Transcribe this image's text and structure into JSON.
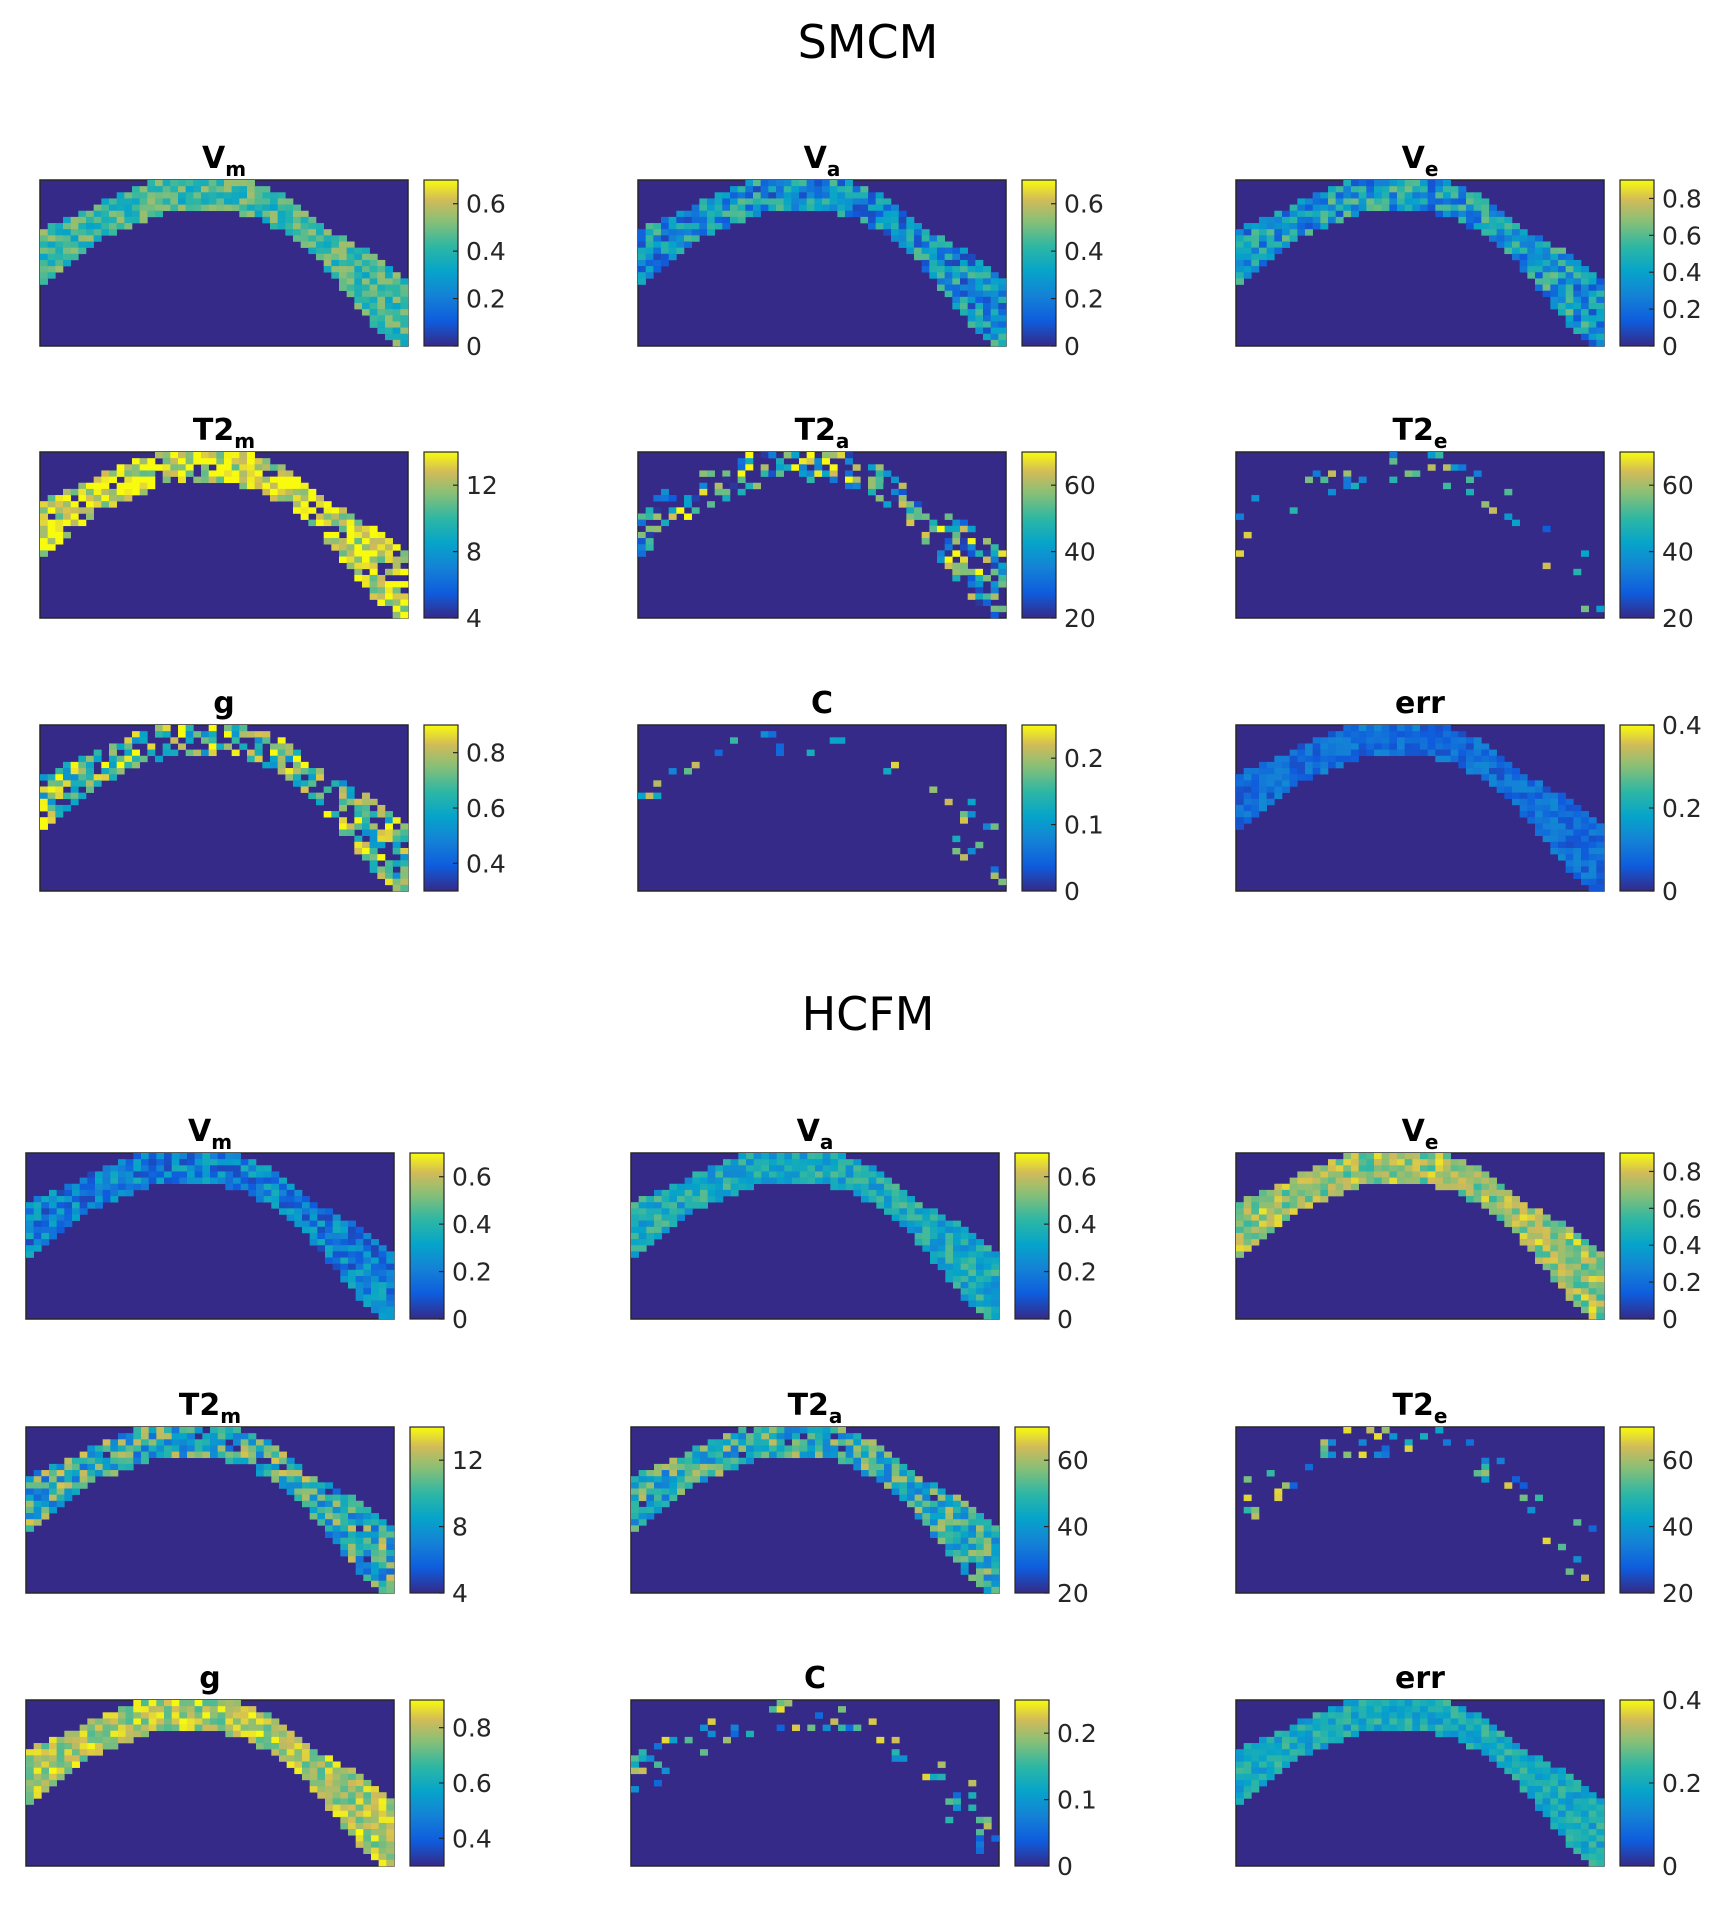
{
  "chart_data": [
    {
      "type": "heatmap",
      "title": "SMCM",
      "colormap": "parula",
      "background_color": "#352a87",
      "panels": [
        {
          "title": "V",
          "subscript": "m",
          "ticks": [
            0,
            0.2,
            0.4,
            0.6
          ],
          "tick_labels": [
            "0",
            "0.2",
            "0.4",
            "0.6"
          ],
          "clim": [
            0,
            0.7
          ]
        },
        {
          "title": "V",
          "subscript": "a",
          "ticks": [
            0,
            0.2,
            0.4,
            0.6
          ],
          "tick_labels": [
            "0",
            "0.2",
            "0.4",
            "0.6"
          ],
          "clim": [
            0,
            0.7
          ]
        },
        {
          "title": "V",
          "subscript": "e",
          "ticks": [
            0,
            0.2,
            0.4,
            0.6,
            0.8
          ],
          "tick_labels": [
            "0",
            "0.2",
            "0.4",
            "0.6",
            "0.8"
          ],
          "clim": [
            0,
            0.9
          ]
        },
        {
          "title": "T2",
          "subscript": "m",
          "ticks": [
            4,
            8,
            12
          ],
          "tick_labels": [
            "4",
            "8",
            "12"
          ],
          "clim": [
            4,
            14
          ]
        },
        {
          "title": "T2",
          "subscript": "a",
          "ticks": [
            20,
            40,
            60
          ],
          "tick_labels": [
            "20",
            "40",
            "60"
          ],
          "clim": [
            20,
            70
          ]
        },
        {
          "title": "T2",
          "subscript": "e",
          "ticks": [
            20,
            40,
            60
          ],
          "tick_labels": [
            "20",
            "40",
            "60"
          ],
          "clim": [
            20,
            70
          ]
        },
        {
          "title": "g",
          "subscript": "",
          "ticks": [
            0.4,
            0.6,
            0.8
          ],
          "tick_labels": [
            "0.4",
            "0.6",
            "0.8"
          ],
          "clim": [
            0.3,
            0.9
          ]
        },
        {
          "title": "C",
          "subscript": "",
          "ticks": [
            0,
            0.1,
            0.2
          ],
          "tick_labels": [
            "0",
            "0.1",
            "0.2"
          ],
          "clim": [
            0,
            0.25
          ]
        },
        {
          "title": "err",
          "subscript": "",
          "ticks": [
            0,
            0.2,
            0.4
          ],
          "tick_labels": [
            "0",
            "0.2",
            "0.4"
          ],
          "clim": [
            0,
            0.4
          ]
        }
      ]
    },
    {
      "type": "heatmap",
      "title": "HCFM",
      "colormap": "parula",
      "background_color": "#352a87",
      "panels": [
        {
          "title": "V",
          "subscript": "m",
          "ticks": [
            0,
            0.2,
            0.4,
            0.6
          ],
          "tick_labels": [
            "0",
            "0.2",
            "0.4",
            "0.6"
          ],
          "clim": [
            0,
            0.7
          ]
        },
        {
          "title": "V",
          "subscript": "a",
          "ticks": [
            0,
            0.2,
            0.4,
            0.6
          ],
          "tick_labels": [
            "0",
            "0.2",
            "0.4",
            "0.6"
          ],
          "clim": [
            0,
            0.7
          ]
        },
        {
          "title": "V",
          "subscript": "e",
          "ticks": [
            0,
            0.2,
            0.4,
            0.6,
            0.8
          ],
          "tick_labels": [
            "0",
            "0.2",
            "0.4",
            "0.6",
            "0.8"
          ],
          "clim": [
            0,
            0.9
          ]
        },
        {
          "title": "T2",
          "subscript": "m",
          "ticks": [
            4,
            8,
            12
          ],
          "tick_labels": [
            "4",
            "8",
            "12"
          ],
          "clim": [
            4,
            14
          ]
        },
        {
          "title": "T2",
          "subscript": "a",
          "ticks": [
            20,
            40,
            60
          ],
          "tick_labels": [
            "20",
            "40",
            "60"
          ],
          "clim": [
            20,
            70
          ]
        },
        {
          "title": "T2",
          "subscript": "e",
          "ticks": [
            20,
            40,
            60
          ],
          "tick_labels": [
            "20",
            "40",
            "60"
          ],
          "clim": [
            20,
            70
          ]
        },
        {
          "title": "g",
          "subscript": "",
          "ticks": [
            0.4,
            0.6,
            0.8
          ],
          "tick_labels": [
            "0.4",
            "0.6",
            "0.8"
          ],
          "clim": [
            0.3,
            0.9
          ]
        },
        {
          "title": "C",
          "subscript": "",
          "ticks": [
            0,
            0.1,
            0.2
          ],
          "tick_labels": [
            "0",
            "0.1",
            "0.2"
          ],
          "clim": [
            0,
            0.25
          ]
        },
        {
          "title": "err",
          "subscript": "",
          "ticks": [
            0,
            0.2,
            0.4
          ],
          "tick_labels": [
            "0",
            "0.2",
            "0.4"
          ],
          "clim": [
            0,
            0.4
          ]
        }
      ]
    }
  ]
}
